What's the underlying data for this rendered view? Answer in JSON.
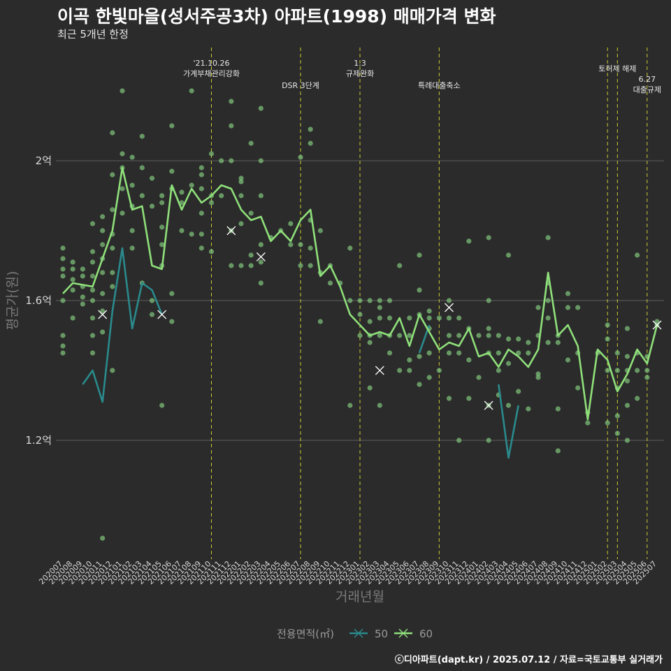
{
  "header": {
    "title": "이곡 한빛마을(성서주공3차) 아파트(1998) 매매가격 변화",
    "subtitle": "최근 5개년 한정"
  },
  "footer": {
    "credit": "ⓒ디아파트(dapt.kr) / 2025.07.12 / 자료=국토교통부 실거래가"
  },
  "colors": {
    "background": "#2b2b2b",
    "grid": "#5c5c5c",
    "event_line": "#cccc33",
    "series_50": "#2a8a8c",
    "series_60": "#8fe07a",
    "points": "#7ec27a"
  },
  "chart_data": {
    "type": "line",
    "xlabel": "거래년월",
    "ylabel": "평균가(원)",
    "ylim": [
      0.86,
      2.34
    ],
    "y_unit": "억",
    "yticks": [
      {
        "value": 1.2,
        "label": "1.2억"
      },
      {
        "value": 1.6,
        "label": "1.6억"
      },
      {
        "value": 2.0,
        "label": "2억"
      }
    ],
    "categories": [
      "202007",
      "202008",
      "202009",
      "202010",
      "202011",
      "202012",
      "202101",
      "202102",
      "202103",
      "202104",
      "202105",
      "202106",
      "202107",
      "202108",
      "202109",
      "202110",
      "202111",
      "202112",
      "202201",
      "202202",
      "202203",
      "202204",
      "202205",
      "202206",
      "202207",
      "202208",
      "202209",
      "202210",
      "202211",
      "202212",
      "202301",
      "202302",
      "202303",
      "202304",
      "202305",
      "202306",
      "202307",
      "202308",
      "202309",
      "202310",
      "202311",
      "202312",
      "202401",
      "202402",
      "202403",
      "202404",
      "202405",
      "202406",
      "202407",
      "202408",
      "202409",
      "202410",
      "202411",
      "202412",
      "202501",
      "202502",
      "202503",
      "202504",
      "202505",
      "202506",
      "202507"
    ],
    "legend": {
      "title": "전용면적(㎡)",
      "position": "bottom"
    },
    "series": [
      {
        "name": "50",
        "values": [
          null,
          null,
          1.36,
          1.4,
          1.31,
          1.57,
          1.75,
          1.52,
          1.65,
          1.63,
          1.56,
          null,
          null,
          null,
          1.65,
          null,
          null,
          null,
          null,
          null,
          null,
          null,
          null,
          null,
          null,
          null,
          null,
          null,
          null,
          null,
          null,
          null,
          null,
          null,
          null,
          null,
          1.45,
          1.53,
          null,
          null,
          1.46,
          null,
          null,
          null,
          1.36,
          1.15,
          1.3,
          null,
          1.25,
          null,
          1.23,
          null,
          1.5,
          null,
          1.27,
          null,
          null,
          null,
          null,
          null,
          null
        ]
      },
      {
        "name": "60",
        "values": [
          1.62,
          1.65,
          1.645,
          1.64,
          1.72,
          1.8,
          1.98,
          1.86,
          1.87,
          1.7,
          1.69,
          1.93,
          1.86,
          1.92,
          1.88,
          1.9,
          1.93,
          1.92,
          1.86,
          1.83,
          1.84,
          1.77,
          1.8,
          1.77,
          1.83,
          1.86,
          1.67,
          1.7,
          1.64,
          1.56,
          1.53,
          1.5,
          1.51,
          1.5,
          1.55,
          1.47,
          1.56,
          1.51,
          1.46,
          1.48,
          1.47,
          1.52,
          1.44,
          1.45,
          1.41,
          1.46,
          1.44,
          1.41,
          1.46,
          1.68,
          1.5,
          1.53,
          1.47,
          1.26,
          1.46,
          1.43,
          1.34,
          1.39,
          1.46,
          1.42,
          1.53
        ]
      }
    ],
    "scatter": [
      [
        0,
        1.47
      ],
      [
        0,
        1.45
      ],
      [
        0,
        1.5
      ],
      [
        0,
        1.6
      ],
      [
        0,
        1.67
      ],
      [
        0,
        1.69
      ],
      [
        0,
        1.72
      ],
      [
        0,
        1.75
      ],
      [
        1,
        1.55
      ],
      [
        1,
        1.63
      ],
      [
        1,
        1.66
      ],
      [
        1,
        1.69
      ],
      [
        1,
        1.71
      ],
      [
        2,
        1.59
      ],
      [
        2,
        1.61
      ],
      [
        2,
        1.64
      ],
      [
        2,
        1.67
      ],
      [
        2,
        1.69
      ],
      [
        3,
        1.45
      ],
      [
        3,
        1.5
      ],
      [
        3,
        1.55
      ],
      [
        3,
        1.6
      ],
      [
        3,
        1.63
      ],
      [
        3,
        1.67
      ],
      [
        3,
        1.71
      ],
      [
        3,
        1.74
      ],
      [
        3,
        1.82
      ],
      [
        4,
        1.51
      ],
      [
        4,
        1.57
      ],
      [
        4,
        1.62
      ],
      [
        4,
        1.68
      ],
      [
        4,
        1.72
      ],
      [
        4,
        1.76
      ],
      [
        4,
        1.8
      ],
      [
        4,
        1.84
      ],
      [
        4,
        0.92
      ],
      [
        5,
        1.4
      ],
      [
        5,
        1.64
      ],
      [
        5,
        1.68
      ],
      [
        5,
        1.75
      ],
      [
        5,
        1.79
      ],
      [
        5,
        1.86
      ],
      [
        5,
        1.96
      ],
      [
        5,
        2.08
      ],
      [
        6,
        1.85
      ],
      [
        6,
        1.92
      ],
      [
        6,
        1.98
      ],
      [
        6,
        2.02
      ],
      [
        6,
        2.2
      ],
      [
        7,
        1.75
      ],
      [
        7,
        1.8
      ],
      [
        7,
        1.87
      ],
      [
        7,
        1.93
      ],
      [
        7,
        2.01
      ],
      [
        8,
        1.65
      ],
      [
        8,
        1.9
      ],
      [
        8,
        1.98
      ],
      [
        8,
        2.07
      ],
      [
        9,
        1.56
      ],
      [
        9,
        1.6
      ],
      [
        9,
        1.87
      ],
      [
        9,
        1.95
      ],
      [
        10,
        1.3
      ],
      [
        10,
        1.7
      ],
      [
        10,
        1.76
      ],
      [
        10,
        1.81
      ],
      [
        10,
        1.88
      ],
      [
        10,
        1.9
      ],
      [
        11,
        1.62
      ],
      [
        11,
        1.54
      ],
      [
        11,
        1.92
      ],
      [
        11,
        1.97
      ],
      [
        11,
        2.1
      ],
      [
        12,
        1.8
      ],
      [
        12,
        1.88
      ],
      [
        12,
        1.91
      ],
      [
        13,
        1.79
      ],
      [
        13,
        1.93
      ],
      [
        13,
        2.2
      ],
      [
        14,
        1.75
      ],
      [
        14,
        1.79
      ],
      [
        14,
        1.85
      ],
      [
        14,
        1.92
      ],
      [
        14,
        1.96
      ],
      [
        14,
        1.98
      ],
      [
        15,
        1.74
      ],
      [
        15,
        1.88
      ],
      [
        15,
        1.9
      ],
      [
        15,
        2.02
      ],
      [
        16,
        1.9
      ],
      [
        16,
        2.0
      ],
      [
        17,
        1.8
      ],
      [
        17,
        1.7
      ],
      [
        17,
        2.0
      ],
      [
        17,
        2.1
      ],
      [
        17,
        2.17
      ],
      [
        18,
        1.7
      ],
      [
        18,
        1.82
      ],
      [
        18,
        1.9
      ],
      [
        18,
        1.94
      ],
      [
        18,
        1.95
      ],
      [
        19,
        1.7
      ],
      [
        19,
        1.73
      ],
      [
        19,
        1.85
      ],
      [
        19,
        2.05
      ],
      [
        20,
        1.65
      ],
      [
        20,
        1.71
      ],
      [
        20,
        1.76
      ],
      [
        20,
        1.9
      ],
      [
        20,
        2.0
      ],
      [
        20,
        2.15
      ],
      [
        21,
        1.78
      ],
      [
        22,
        1.8
      ],
      [
        23,
        1.76
      ],
      [
        23,
        1.82
      ],
      [
        24,
        1.7
      ],
      [
        24,
        1.76
      ],
      [
        24,
        2.01
      ],
      [
        25,
        1.7
      ],
      [
        25,
        1.75
      ],
      [
        25,
        1.83
      ],
      [
        25,
        2.05
      ],
      [
        25,
        2.09
      ],
      [
        26,
        1.54
      ],
      [
        26,
        1.68
      ],
      [
        26,
        1.8
      ],
      [
        27,
        1.65
      ],
      [
        27,
        1.7
      ],
      [
        28,
        1.65
      ],
      [
        29,
        1.3
      ],
      [
        29,
        1.6
      ],
      [
        29,
        1.75
      ],
      [
        30,
        1.5
      ],
      [
        30,
        1.56
      ],
      [
        30,
        1.6
      ],
      [
        31,
        1.35
      ],
      [
        31,
        1.48
      ],
      [
        31,
        1.5
      ],
      [
        31,
        1.54
      ],
      [
        31,
        1.6
      ],
      [
        32,
        1.3
      ],
      [
        32,
        1.5
      ],
      [
        32,
        1.55
      ],
      [
        32,
        1.58
      ],
      [
        32,
        1.6
      ],
      [
        33,
        1.45
      ],
      [
        33,
        1.5
      ],
      [
        33,
        1.55
      ],
      [
        33,
        1.6
      ],
      [
        34,
        1.4
      ],
      [
        34,
        1.5
      ],
      [
        34,
        1.7
      ],
      [
        35,
        1.4
      ],
      [
        35,
        1.43
      ],
      [
        35,
        1.5
      ],
      [
        35,
        1.55
      ],
      [
        36,
        1.36
      ],
      [
        36,
        1.44
      ],
      [
        36,
        1.56
      ],
      [
        36,
        1.63
      ],
      [
        36,
        1.73
      ],
      [
        37,
        1.38
      ],
      [
        37,
        1.45
      ],
      [
        37,
        1.52
      ],
      [
        37,
        1.55
      ],
      [
        37,
        1.57
      ],
      [
        38,
        1.4
      ],
      [
        38,
        1.55
      ],
      [
        39,
        1.32
      ],
      [
        39,
        1.45
      ],
      [
        39,
        1.5
      ],
      [
        39,
        1.55
      ],
      [
        39,
        1.6
      ],
      [
        40,
        1.2
      ],
      [
        40,
        1.45
      ],
      [
        40,
        1.5
      ],
      [
        40,
        1.55
      ],
      [
        41,
        1.32
      ],
      [
        41,
        1.43
      ],
      [
        41,
        1.52
      ],
      [
        41,
        1.77
      ],
      [
        42,
        1.38
      ],
      [
        42,
        1.5
      ],
      [
        43,
        1.2
      ],
      [
        43,
        1.3
      ],
      [
        43,
        1.45
      ],
      [
        43,
        1.5
      ],
      [
        43,
        1.52
      ],
      [
        43,
        1.6
      ],
      [
        43,
        1.78
      ],
      [
        44,
        1.33
      ],
      [
        44,
        1.4
      ],
      [
        44,
        1.45
      ],
      [
        44,
        1.5
      ],
      [
        45,
        1.3
      ],
      [
        45,
        1.42
      ],
      [
        45,
        1.49
      ],
      [
        45,
        1.73
      ],
      [
        46,
        1.34
      ],
      [
        46,
        1.45
      ],
      [
        46,
        1.49
      ],
      [
        47,
        1.29
      ],
      [
        47,
        1.45
      ],
      [
        47,
        1.48
      ],
      [
        48,
        1.38
      ],
      [
        48,
        1.39
      ],
      [
        48,
        1.5
      ],
      [
        48,
        1.58
      ],
      [
        49,
        1.48
      ],
      [
        49,
        1.55
      ],
      [
        49,
        1.6
      ],
      [
        49,
        1.65
      ],
      [
        49,
        1.78
      ],
      [
        50,
        1.17
      ],
      [
        50,
        1.29
      ],
      [
        50,
        1.48
      ],
      [
        50,
        1.5
      ],
      [
        51,
        1.43
      ],
      [
        51,
        1.58
      ],
      [
        51,
        1.62
      ],
      [
        52,
        1.35
      ],
      [
        52,
        1.45
      ],
      [
        52,
        1.58
      ],
      [
        53,
        1.25
      ],
      [
        53,
        1.28
      ],
      [
        54,
        1.45
      ],
      [
        55,
        1.25
      ],
      [
        55,
        1.4
      ],
      [
        55,
        1.49
      ],
      [
        55,
        1.53
      ],
      [
        56,
        1.22
      ],
      [
        56,
        1.27
      ],
      [
        56,
        1.35
      ],
      [
        56,
        1.4
      ],
      [
        56,
        1.45
      ],
      [
        57,
        1.2
      ],
      [
        57,
        1.3
      ],
      [
        57,
        1.37
      ],
      [
        57,
        1.4
      ],
      [
        57,
        1.44
      ],
      [
        57,
        1.52
      ],
      [
        58,
        1.32
      ],
      [
        58,
        1.4
      ],
      [
        58,
        1.45
      ],
      [
        58,
        1.73
      ],
      [
        59,
        1.38
      ],
      [
        59,
        1.4
      ],
      [
        59,
        1.44
      ],
      [
        60,
        1.53
      ],
      [
        60,
        1.54
      ]
    ],
    "highlights": [
      {
        "series": "60",
        "index": 4,
        "value": 1.56
      },
      {
        "series": "50",
        "index": 10,
        "value": 1.56
      },
      {
        "series": "60",
        "index": 17,
        "value": 1.8
      },
      {
        "series": "60",
        "index": 20,
        "value": 1.725
      },
      {
        "series": "60",
        "index": 32,
        "value": 1.4
      },
      {
        "series": "60",
        "index": 39,
        "value": 1.58
      },
      {
        "series": "60",
        "index": 43,
        "value": 1.3
      },
      {
        "series": "60",
        "index": 60,
        "value": 1.53
      }
    ],
    "events": [
      {
        "index": 15,
        "lines": [
          "'21.10.26",
          "가계부채관리강화"
        ],
        "row": 0
      },
      {
        "index": 24,
        "lines": [
          "DSR 3단계"
        ],
        "row": 1
      },
      {
        "index": 30,
        "lines": [
          "1.3",
          "규제완화"
        ],
        "row": 0
      },
      {
        "index": 38,
        "lines": [
          "특례대출축소"
        ],
        "row": 1
      },
      {
        "index": 55,
        "lines": [],
        "row": 0
      },
      {
        "index": 56,
        "lines": [
          "토허제 해제"
        ],
        "row": 3
      },
      {
        "index": 59,
        "lines": [
          "6.27",
          "대출규제"
        ],
        "row": 2
      }
    ]
  }
}
